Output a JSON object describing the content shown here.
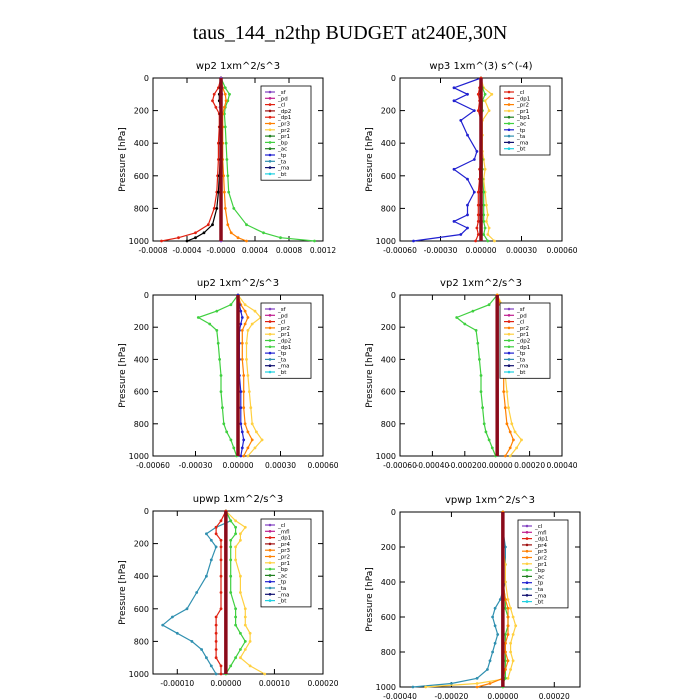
{
  "page": {
    "title": "taus_144_n2thp  BUDGET at240E,30N"
  },
  "colors": {
    "purple": "#8040c0",
    "magenta": "#c02090",
    "red": "#e02010",
    "darkred": "#a01010",
    "orange": "#ff8000",
    "yellow": "#ffd040",
    "green": "#40d040",
    "darkgreen": "#208020",
    "blue": "#2020d0",
    "teal": "#3090b0",
    "navy": "#101070",
    "black": "#000000",
    "cyan": "#20d0e0",
    "thick": "#8b0a1a"
  },
  "chart_data": [
    {
      "type": "line",
      "title": "wp2   1xm^2/s^3",
      "ylabel": "Pressure [hPa]",
      "xlim": [
        -0.0008,
        0.0012
      ],
      "ylim": [
        1000,
        0
      ],
      "xticks": [
        "-0.0008",
        "-0.0004",
        "-0.0000",
        "0.0004",
        "0.0008",
        "0.0012"
      ],
      "yticks": [
        "0",
        "200",
        "400",
        "600",
        "800",
        "1000"
      ],
      "legend": [
        "_sf",
        "_pd",
        "_cl",
        "_dp2",
        "_dp1",
        "_pr3",
        "_pr2",
        "_pr1",
        "_bp",
        "_ac",
        "_tp",
        "_ta",
        "_ma",
        "_bt"
      ],
      "legend_colors": [
        "purple",
        "magenta",
        "red",
        "darkred",
        "red",
        "orange",
        "yellow",
        "darkgreen",
        "green",
        "darkgreen",
        "blue",
        "teal",
        "navy",
        "cyan"
      ],
      "legend_placement": "top-right",
      "y": [
        0,
        60,
        100,
        140,
        180,
        220,
        300,
        400,
        500,
        600,
        700,
        800,
        900,
        950,
        980,
        1000
      ],
      "series": [
        {
          "color": "green",
          "values": [
            0,
            5e-05,
            0.0001,
            8e-05,
            5e-05,
            4e-05,
            5e-05,
            6e-05,
            7e-05,
            8e-05,
            9e-05,
            0.00015,
            0.0003,
            0.0005,
            0.0007,
            0.0011
          ]
        },
        {
          "color": "red",
          "values": [
            0,
            -3e-05,
            -8e-05,
            -0.0001,
            -6e-05,
            -2e-05,
            -2e-05,
            -3e-05,
            -3e-05,
            -4e-05,
            -5e-05,
            -8e-05,
            -0.00015,
            -0.0003,
            -0.0005,
            -0.0007
          ]
        },
        {
          "color": "orange",
          "values": [
            0,
            2e-05,
            5e-05,
            6e-05,
            4e-05,
            2e-05,
            2e-05,
            2e-05,
            2e-05,
            3e-05,
            4e-05,
            5e-05,
            8e-05,
            0.00012,
            0.0002,
            0.0003
          ]
        },
        {
          "color": "black",
          "values": [
            0,
            -1e-05,
            -2e-05,
            -2e-05,
            -1e-05,
            -1e-05,
            -1e-05,
            -1e-05,
            -1e-05,
            -2e-05,
            -3e-05,
            -5e-05,
            -0.0001,
            -0.0002,
            -0.0003,
            -0.0004
          ]
        },
        {
          "color": "purple",
          "values": [
            0,
            1e-05,
            1e-05,
            0,
            -1e-05,
            0,
            0,
            0,
            0,
            0,
            0,
            0,
            0,
            0,
            0,
            0
          ]
        }
      ]
    },
    {
      "type": "line",
      "title": "wp3   1xm^(3) s^(-4)",
      "ylabel": "Pressure [hPa]",
      "xlim": [
        -0.0006,
        0.0006
      ],
      "ylim": [
        1000,
        0
      ],
      "xticks": [
        "-0.00060",
        "-0.00030",
        "0.00000",
        "0.00030",
        "0.00060"
      ],
      "yticks": [
        "0",
        "200",
        "400",
        "600",
        "800",
        "1000"
      ],
      "legend": [
        "_cl",
        "_dp1",
        "_pr2",
        "_pr1",
        "_bp1",
        "_ac",
        "_tp",
        "_ta",
        "_ma",
        "_bt"
      ],
      "legend_colors": [
        "red",
        "red",
        "orange",
        "yellow",
        "darkgreen",
        "green",
        "blue",
        "teal",
        "navy",
        "cyan"
      ],
      "legend_placement": "top-right",
      "y": [
        0,
        60,
        100,
        140,
        200,
        260,
        350,
        450,
        500,
        560,
        620,
        700,
        780,
        840,
        880,
        920,
        960,
        1000
      ],
      "series": [
        {
          "color": "blue",
          "values": [
            0,
            -0.0002,
            -0.0001,
            -0.0002,
            -5e-05,
            -0.00015,
            -0.0001,
            -3e-05,
            -5e-05,
            -0.0002,
            -0.0001,
            -5e-05,
            -0.0001,
            -0.0001,
            -0.0002,
            -0.0001,
            -0.00015,
            -0.0005
          ]
        },
        {
          "color": "yellow",
          "values": [
            0,
            2e-05,
            8e-05,
            3e-05,
            6e-05,
            1e-05,
            1e-05,
            1e-05,
            2e-05,
            3e-05,
            2e-05,
            3e-05,
            4e-05,
            5e-05,
            4e-05,
            6e-05,
            5e-05,
            0.0001
          ]
        },
        {
          "color": "green",
          "values": [
            0,
            1e-05,
            3e-05,
            1e-05,
            1e-05,
            0,
            0,
            0,
            1e-05,
            1e-05,
            1e-05,
            2e-05,
            2e-05,
            2e-05,
            2e-05,
            3e-05,
            2e-05,
            5e-05
          ]
        },
        {
          "color": "red",
          "values": [
            0,
            -1e-05,
            -2e-05,
            -1e-05,
            -2e-05,
            0,
            0,
            0,
            0,
            -1e-05,
            -1e-05,
            -2e-05,
            -2e-05,
            -2e-05,
            -2e-05,
            -3e-05,
            -2e-05,
            -4e-05
          ]
        }
      ]
    },
    {
      "type": "line",
      "title": "up2   1xm^2/s^3",
      "ylabel": "Pressure [hPa]",
      "xlim": [
        -0.0006,
        0.0006
      ],
      "ylim": [
        1000,
        0
      ],
      "xticks": [
        "-0.00060",
        "-0.00030",
        "0.00000",
        "0.00030",
        "0.00060"
      ],
      "yticks": [
        "0",
        "200",
        "400",
        "600",
        "800",
        "1000"
      ],
      "legend": [
        "_sf",
        "_pd",
        "_cl",
        "_pr2",
        "_pr1",
        "_dp2",
        "_dp1",
        "_tp",
        "_ta",
        "_ma",
        "_bt"
      ],
      "legend_colors": [
        "purple",
        "magenta",
        "red",
        "orange",
        "yellow",
        "green",
        "green",
        "blue",
        "teal",
        "navy",
        "cyan"
      ],
      "legend_placement": "top-right",
      "y": [
        0,
        60,
        100,
        140,
        180,
        220,
        300,
        400,
        500,
        600,
        700,
        800,
        850,
        900,
        950,
        1000
      ],
      "series": [
        {
          "color": "green",
          "values": [
            0,
            -5e-05,
            -0.00015,
            -0.00028,
            -0.0002,
            -0.00015,
            -0.00014,
            -0.00013,
            -0.00012,
            -0.00012,
            -0.00011,
            -0.0001,
            -8e-05,
            -5e-05,
            -3e-05,
            -1e-05
          ]
        },
        {
          "color": "yellow",
          "values": [
            0,
            5e-05,
            0.00012,
            0.00016,
            0.0001,
            7e-05,
            6e-05,
            6e-05,
            7e-05,
            8e-05,
            9e-05,
            0.0001,
            0.00013,
            0.00017,
            0.00012,
            7e-05
          ]
        },
        {
          "color": "orange",
          "values": [
            0,
            2e-05,
            5e-05,
            7e-05,
            5e-05,
            3e-05,
            3e-05,
            3e-05,
            4e-05,
            4e-05,
            4e-05,
            5e-05,
            7e-05,
            0.0001,
            7e-05,
            4e-05
          ]
        },
        {
          "color": "blue",
          "values": [
            0,
            1e-05,
            2e-05,
            3e-05,
            2e-05,
            1e-05,
            1e-05,
            1e-05,
            1e-05,
            2e-05,
            2e-05,
            2e-05,
            3e-05,
            4e-05,
            3e-05,
            2e-05
          ]
        }
      ]
    },
    {
      "type": "line",
      "title": "vp2   1xm^2/s^3",
      "ylabel": "Pressure [hPa]",
      "xlim": [
        -0.0006,
        0.0004
      ],
      "ylim": [
        1000,
        0
      ],
      "xticks": [
        "-0.00060",
        "-0.00040",
        "-0.00020",
        "0.00000",
        "0.00020",
        "0.00040"
      ],
      "yticks": [
        "0",
        "200",
        "400",
        "600",
        "800",
        "1000"
      ],
      "legend": [
        "_sf",
        "_pd",
        "_cl",
        "_pr2",
        "_pr1",
        "_dp2",
        "_dp1",
        "_tp",
        "_ta",
        "_ma",
        "_bt"
      ],
      "legend_colors": [
        "purple",
        "magenta",
        "red",
        "orange",
        "yellow",
        "green",
        "green",
        "blue",
        "teal",
        "navy",
        "cyan"
      ],
      "legend_placement": "top-right",
      "y": [
        0,
        60,
        100,
        140,
        180,
        220,
        300,
        400,
        500,
        600,
        700,
        800,
        850,
        900,
        950,
        1000
      ],
      "series": [
        {
          "color": "green",
          "values": [
            0,
            -5e-05,
            -0.00015,
            -0.00025,
            -0.0002,
            -0.00013,
            -0.00012,
            -0.00011,
            -0.0001,
            -0.0001,
            -9e-05,
            -8e-05,
            -7e-05,
            -5e-05,
            -3e-05,
            -1e-05
          ]
        },
        {
          "color": "yellow",
          "values": [
            0,
            3e-05,
            0.0001,
            0.00016,
            0.0001,
            6e-05,
            5e-05,
            5e-05,
            5e-05,
            6e-05,
            7e-05,
            9e-05,
            0.00011,
            0.00015,
            0.00012,
            8e-05
          ]
        },
        {
          "color": "orange",
          "values": [
            0,
            2e-05,
            5e-05,
            7e-05,
            5e-05,
            3e-05,
            3e-05,
            3e-05,
            4e-05,
            4e-05,
            5e-05,
            6e-05,
            8e-05,
            0.0001,
            8e-05,
            5e-05
          ]
        }
      ]
    },
    {
      "type": "line",
      "title": "upwp   1xm^2/s^3",
      "ylabel": "Pressure [hPa]",
      "xlim": [
        -0.00015,
        0.0002
      ],
      "ylim": [
        1000,
        0
      ],
      "xticks": [
        "-0.00010",
        "0.00000",
        "0.00010",
        "0.00020"
      ],
      "yticks": [
        "0",
        "200",
        "400",
        "600",
        "800",
        "1000"
      ],
      "legend": [
        "_cl",
        "_mfl",
        "_dp1",
        "_pr4",
        "_pr3",
        "_pr2",
        "_pr1",
        "_bp",
        "_ac",
        "_tp",
        "_ta",
        "_ma",
        "_bt"
      ],
      "legend_colors": [
        "purple",
        "magenta",
        "red",
        "darkred",
        "orange",
        "orange",
        "yellow",
        "green",
        "darkgreen",
        "blue",
        "teal",
        "navy",
        "cyan"
      ],
      "legend_placement": "top-right",
      "y": [
        0,
        60,
        100,
        140,
        180,
        220,
        300,
        400,
        500,
        600,
        650,
        700,
        750,
        800,
        850,
        900,
        950,
        1000
      ],
      "series": [
        {
          "color": "teal",
          "values": [
            0,
            1e-05,
            -2e-05,
            -4e-05,
            -3e-05,
            -2e-05,
            -3e-05,
            -4e-05,
            -6e-05,
            -8e-05,
            -0.00011,
            -0.00013,
            -0.0001,
            -7e-05,
            -5e-05,
            -4e-05,
            -3e-05,
            -2e-05
          ]
        },
        {
          "color": "yellow",
          "values": [
            0,
            2e-05,
            4e-05,
            3e-05,
            3e-05,
            2e-05,
            2e-05,
            3e-05,
            3e-05,
            4e-05,
            4e-05,
            4e-05,
            5e-05,
            5e-05,
            4e-05,
            3e-05,
            5e-05,
            8e-05
          ]
        },
        {
          "color": "green",
          "values": [
            0,
            1e-05,
            2e-05,
            2e-05,
            1e-05,
            1e-05,
            1e-05,
            1e-05,
            1e-05,
            2e-05,
            2e-05,
            2e-05,
            3e-05,
            4e-05,
            3e-05,
            2e-05,
            1e-05,
            0
          ]
        },
        {
          "color": "red",
          "values": [
            0,
            -1e-05,
            -2e-05,
            -2e-05,
            -1e-05,
            -1e-05,
            -1e-05,
            -1e-05,
            -1e-05,
            -1e-05,
            -2e-05,
            -2e-05,
            -2e-05,
            -2e-05,
            -2e-05,
            -2e-05,
            -1e-05,
            -1e-05
          ]
        }
      ]
    },
    {
      "type": "line",
      "title": "vpwp   1xm^2/s^3",
      "ylabel": "Pressure [hPa]",
      "xlim": [
        -0.0004,
        0.0003
      ],
      "ylim": [
        1000,
        0
      ],
      "xticks": [
        "-0.00040",
        "-0.00020",
        "0.00000",
        "0.00020"
      ],
      "yticks": [
        "0",
        "200",
        "400",
        "600",
        "800",
        "1000"
      ],
      "legend": [
        "_cl",
        "_mfl",
        "_dp1",
        "_pr4",
        "_pr3",
        "_pr2",
        "_pr1",
        "_bp",
        "_ac",
        "_tp",
        "_ta",
        "_ma",
        "_bt"
      ],
      "legend_colors": [
        "purple",
        "magenta",
        "red",
        "darkred",
        "orange",
        "orange",
        "yellow",
        "green",
        "darkgreen",
        "blue",
        "teal",
        "navy",
        "cyan"
      ],
      "legend_placement": "top-right",
      "y": [
        0,
        100,
        200,
        300,
        400,
        500,
        550,
        600,
        650,
        700,
        750,
        800,
        850,
        900,
        950,
        980,
        1000
      ],
      "series": [
        {
          "color": "teal",
          "values": [
            0,
            0,
            1e-05,
            1e-05,
            1e-05,
            -1e-05,
            -3e-05,
            -4e-05,
            -3e-05,
            -2e-05,
            -3e-05,
            -4e-05,
            -5e-05,
            -6e-05,
            -0.0001,
            -0.0002,
            -0.00035
          ]
        },
        {
          "color": "yellow",
          "values": [
            0,
            0,
            0,
            1e-05,
            1e-05,
            2e-05,
            3e-05,
            4e-05,
            5e-05,
            4e-05,
            3e-05,
            3e-05,
            4e-05,
            3e-05,
            2e-05,
            -0.0001,
            -0.0003
          ]
        },
        {
          "color": "green",
          "values": [
            0,
            0,
            0,
            0,
            0,
            1e-05,
            1e-05,
            2e-05,
            2e-05,
            1e-05,
            1e-05,
            1e-05,
            1e-05,
            1e-05,
            1e-05,
            0,
            0
          ]
        },
        {
          "color": "orange",
          "values": [
            0,
            0,
            0,
            0,
            0,
            1e-05,
            2e-05,
            2e-05,
            2e-05,
            2e-05,
            1e-05,
            1e-05,
            2e-05,
            1e-05,
            0,
            -5e-05,
            -0.0001
          ]
        }
      ]
    }
  ]
}
